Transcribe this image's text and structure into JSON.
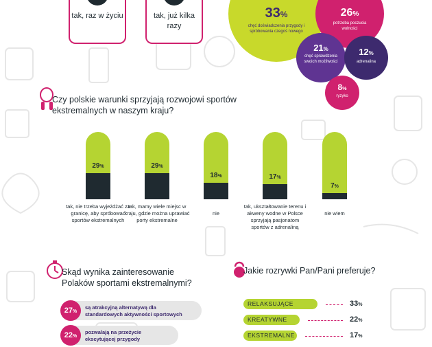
{
  "top_cards": [
    {
      "label": "tak, raz w życiu"
    },
    {
      "label": "tak, już kilka razy"
    }
  ],
  "motivations": [
    {
      "value": "33",
      "unit": "%",
      "label": "chęć doświadczenia przygody i spróbowania czegoś nowego",
      "color": "#c8d92b"
    },
    {
      "value": "26",
      "unit": "%",
      "label": "potrzeba poczucia wolności",
      "color": "#d0216e"
    },
    {
      "value": "21",
      "unit": "%",
      "label": "chęć sprawdzenia swoich możliwości",
      "color": "#5f3492"
    },
    {
      "value": "12",
      "unit": "%",
      "label": "adrenalina",
      "color": "#3d2a6e"
    },
    {
      "value": "8",
      "unit": "%",
      "label": "ryzyko",
      "color": "#d0216e"
    }
  ],
  "question1": "Czy polskie warunki sprzyjają rozwojowi sportów ekstremalnych w naszym kraju?",
  "chart_data": {
    "type": "bar",
    "unit": "%",
    "categories": [
      "tak, nie trzeba wyjeżdżać za granicę, aby spróbować sportów ekstremalnych",
      "tak, mamy wiele miejsc w kraju, gdzie można uprawiać porty ekstremalne",
      "nie",
      "tak, ukształtowanie terenu i akweny wodne w Polsce sprzyjają pasjonatom sportów z adrenaliną",
      "nie wiem"
    ],
    "values": [
      29,
      29,
      18,
      17,
      7
    ],
    "ylim": [
      0,
      100
    ],
    "colors": {
      "fill": "#1f2a30",
      "rest": "#b5d432"
    }
  },
  "question2": "Skąd wynika zainteresowanie Polaków sportami ekstremalnymi?",
  "reasons": [
    {
      "value": "27",
      "unit": "%",
      "text": "są atrakcyjną alternatywą dla standardowych aktywności sportowych"
    },
    {
      "value": "22",
      "unit": "%",
      "text": "pozwalają na przeżycie ekscytującej przygody"
    }
  ],
  "question3": "Jakie rozrywki Pan/Pani preferuje?",
  "preferences": [
    {
      "label": "RELAKSUJĄCE",
      "value": "33",
      "unit": "%"
    },
    {
      "label": "KREATYWNE",
      "value": "22",
      "unit": "%"
    },
    {
      "label": "EKSTREMALNE",
      "value": "17",
      "unit": "%"
    }
  ]
}
